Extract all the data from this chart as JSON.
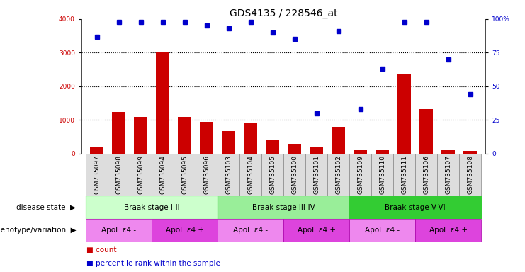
{
  "title": "GDS4135 / 228546_at",
  "samples": [
    "GSM735097",
    "GSM735098",
    "GSM735099",
    "GSM735094",
    "GSM735095",
    "GSM735096",
    "GSM735103",
    "GSM735104",
    "GSM735105",
    "GSM735100",
    "GSM735101",
    "GSM735102",
    "GSM735109",
    "GSM735110",
    "GSM735111",
    "GSM735106",
    "GSM735107",
    "GSM735108"
  ],
  "counts": [
    200,
    1250,
    1100,
    3000,
    1100,
    950,
    680,
    900,
    400,
    300,
    200,
    800,
    100,
    110,
    2380,
    1330,
    100,
    80
  ],
  "percentiles": [
    87,
    98,
    98,
    98,
    98,
    95,
    93,
    98,
    90,
    85,
    30,
    91,
    33,
    63,
    98,
    98,
    70,
    44
  ],
  "ylim_left": [
    0,
    4000
  ],
  "ylim_right": [
    0,
    100
  ],
  "yticks_left": [
    0,
    1000,
    2000,
    3000,
    4000
  ],
  "yticks_right": [
    0,
    25,
    50,
    75,
    100
  ],
  "bar_color": "#cc0000",
  "dot_color": "#0000cc",
  "disease_stages": [
    {
      "label": "Braak stage I-II",
      "start": 0,
      "end": 6,
      "color": "#ccffcc",
      "edgecolor": "#33cc33"
    },
    {
      "label": "Braak stage III-IV",
      "start": 6,
      "end": 12,
      "color": "#99ee99",
      "edgecolor": "#33cc33"
    },
    {
      "label": "Braak stage V-VI",
      "start": 12,
      "end": 18,
      "color": "#33cc33",
      "edgecolor": "#33cc33"
    }
  ],
  "genotype_groups": [
    {
      "label": "ApoE ε4 -",
      "start": 0,
      "end": 3,
      "color": "#ee88ee"
    },
    {
      "label": "ApoE ε4 +",
      "start": 3,
      "end": 6,
      "color": "#dd44dd"
    },
    {
      "label": "ApoE ε4 -",
      "start": 6,
      "end": 9,
      "color": "#ee88ee"
    },
    {
      "label": "ApoE ε4 +",
      "start": 9,
      "end": 12,
      "color": "#dd44dd"
    },
    {
      "label": "ApoE ε4 -",
      "start": 12,
      "end": 15,
      "color": "#ee88ee"
    },
    {
      "label": "ApoE ε4 +",
      "start": 15,
      "end": 18,
      "color": "#dd44dd"
    }
  ],
  "disease_state_label": "disease state",
  "genotype_label": "genotype/variation",
  "legend_count": "count",
  "legend_percentile": "percentile rank within the sample",
  "bg_color": "#ffffff",
  "title_fontsize": 10,
  "tick_fontsize": 6.5,
  "label_fontsize": 7.5,
  "annotation_fontsize": 7.5,
  "xtick_fontsize": 6.5
}
